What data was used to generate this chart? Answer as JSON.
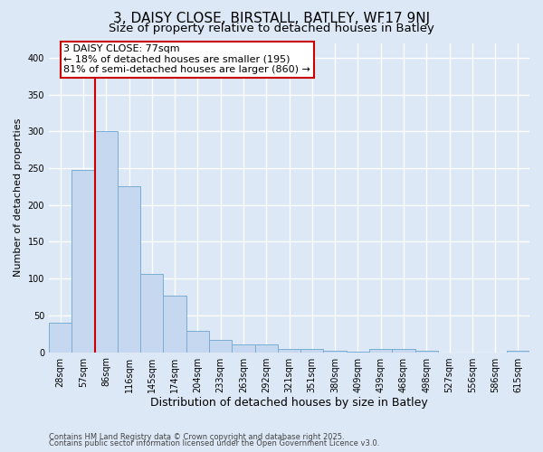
{
  "title": "3, DAISY CLOSE, BIRSTALL, BATLEY, WF17 9NJ",
  "subtitle": "Size of property relative to detached houses in Batley",
  "xlabel": "Distribution of detached houses by size in Batley",
  "ylabel": "Number of detached properties",
  "categories": [
    "28sqm",
    "57sqm",
    "86sqm",
    "116sqm",
    "145sqm",
    "174sqm",
    "204sqm",
    "233sqm",
    "263sqm",
    "292sqm",
    "321sqm",
    "351sqm",
    "380sqm",
    "409sqm",
    "439sqm",
    "468sqm",
    "498sqm",
    "527sqm",
    "556sqm",
    "586sqm",
    "615sqm"
  ],
  "values": [
    40,
    248,
    300,
    225,
    106,
    77,
    29,
    17,
    11,
    10,
    5,
    4,
    2,
    1,
    4,
    4,
    2,
    0,
    0,
    0,
    2
  ],
  "bar_color": "#c5d8f0",
  "bar_edge_color": "#7aadd4",
  "vline_color": "#cc0000",
  "annotation_text": "3 DAISY CLOSE: 77sqm\n← 18% of detached houses are smaller (195)\n81% of semi-detached houses are larger (860) →",
  "annotation_box_facecolor": "#ffffff",
  "annotation_box_edgecolor": "#cc0000",
  "footer_line1": "Contains HM Land Registry data © Crown copyright and database right 2025.",
  "footer_line2": "Contains public sector information licensed under the Open Government Licence v3.0.",
  "background_color": "#dce8f5",
  "plot_background_color": "#dce8f5",
  "grid_color": "#ffffff",
  "ylim": [
    0,
    420
  ],
  "title_fontsize": 11,
  "subtitle_fontsize": 9.5,
  "xlabel_fontsize": 9,
  "ylabel_fontsize": 8,
  "tick_fontsize": 7,
  "footer_fontsize": 6,
  "annot_fontsize": 8
}
